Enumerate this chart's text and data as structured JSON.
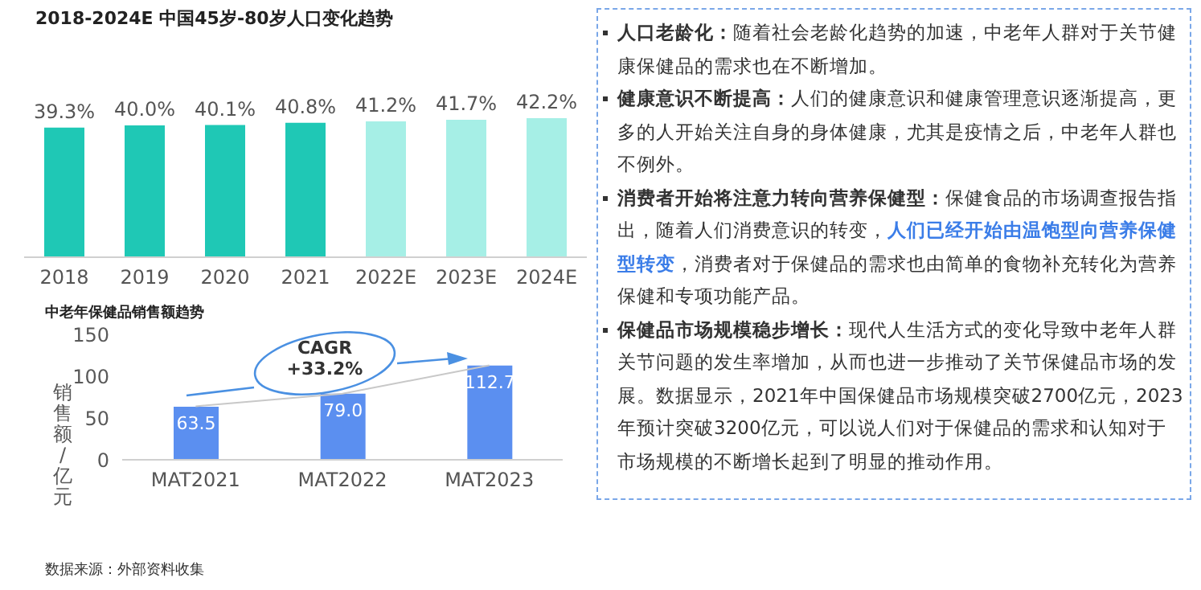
{
  "chart_data": [
    {
      "type": "bar",
      "title": "2018-2024E 中国45岁-80岁人口变化趋势",
      "categories": [
        "2018",
        "2019",
        "2020",
        "2021",
        "2022E",
        "2023E",
        "2024E"
      ],
      "values": [
        39.3,
        40.0,
        40.1,
        40.8,
        41.2,
        41.7,
        42.2
      ],
      "value_labels": [
        "39.3%",
        "40.0%",
        "40.1%",
        "40.8%",
        "41.2%",
        "41.7%",
        "42.2%"
      ],
      "colors": [
        "#1fc8b5",
        "#1fc8b5",
        "#1fc8b5",
        "#1fc8b5",
        "#a6efe6",
        "#a6efe6",
        "#a6efe6"
      ],
      "tick_labels": "x",
      "grid": false,
      "legend": false
    },
    {
      "type": "bar",
      "title": "中老年保健品销售额趋势",
      "ylabel": "销售额/亿元",
      "categories": [
        "MAT2021",
        "MAT2022",
        "MAT2023"
      ],
      "series": [
        {
          "type": "bar",
          "color": "#5b8ff0",
          "values": [
            63.5,
            79.0,
            112.7
          ],
          "value_labels": [
            "63.5",
            "79.0",
            "112.7"
          ]
        },
        {
          "type": "line",
          "color": "#c8c8c8",
          "values": [
            64,
            79,
            113
          ],
          "marker": "none"
        }
      ],
      "ylim": [
        0,
        150
      ],
      "yticks": [
        0,
        50,
        100,
        150
      ],
      "grid": false,
      "legend": false,
      "annotations": [
        "CAGR\n+33.2%",
        "数据来源：外部资料收集"
      ]
    },
    {
      "type": "other",
      "annotations": [
        "人口老龄化：",
        "随着社会老龄化趋势的加速，中老年人群对于关节健康保健品的需求也在不断增加。",
        "健康意识不断提高：",
        "人们的健康意识和健康管理意识逐渐提高，更多的人开始关注自身的身体健康，尤其是疫情之后，中老年人群也不例外。",
        "消费者开始将注意力转向营养保健型：",
        "保健食品的市场调查报告指出，随着人们消费意识的转变，",
        "人们已经开始由温饱型向营养保健型转变",
        "，消费者对于保健品的需求也由简单的食物补充转化为营养保健和专项功能产品。",
        "保健品市场规模稳步增长：",
        "现代人生活方式的变化导致中老年人群关节问题的发生率增加，从而也进一步推动了关节保健品市场的发展。数据显示，2021年中国保健品市场规模突破2700亿元，2023年预计突破3200亿元，可以说人们对于保健品的需求和认知对于市场规模的不断增长起到了明显的推动作用。"
      ]
    }
  ]
}
